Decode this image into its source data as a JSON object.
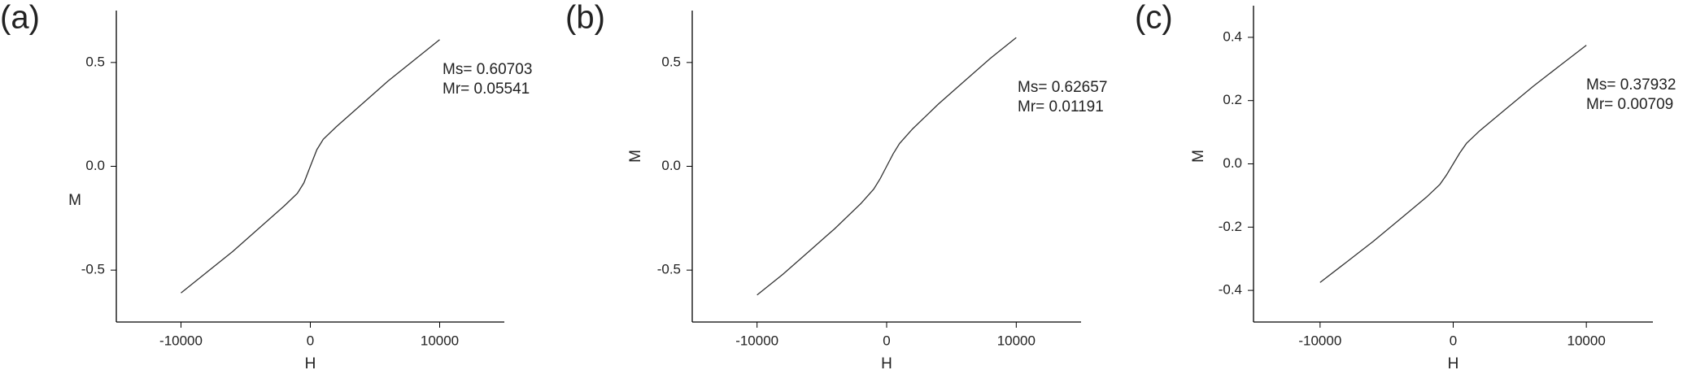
{
  "chart_data": [
    {
      "type": "line",
      "panel_label": "(a)",
      "x_label": "H",
      "y_label": "M",
      "annotations": [
        "Ms= 0.60703",
        "Mr= 0.05541"
      ],
      "xlim": [
        -15000,
        15000
      ],
      "xticks": [
        -10000,
        0,
        10000
      ],
      "ylim": [
        -0.75,
        0.75
      ],
      "yticks": [
        -0.5,
        {
          "value": 0,
          "label": "0.0"
        },
        0.5
      ],
      "x": [
        -10000,
        -8000,
        -6000,
        -4000,
        -2000,
        -1000,
        -500,
        0,
        500,
        1000,
        2000,
        4000,
        6000,
        8000,
        10000
      ],
      "series": [
        {
          "color": "#333333",
          "values": [
            -0.61,
            -0.51,
            -0.41,
            -0.3,
            -0.19,
            -0.13,
            -0.08,
            0.0,
            0.08,
            0.13,
            0.19,
            0.3,
            0.41,
            0.51,
            0.61
          ]
        }
      ]
    },
    {
      "type": "line",
      "panel_label": "(b)",
      "x_label": "H",
      "y_label": "M",
      "annotations": [
        "Ms= 0.62657",
        "Mr= 0.01191"
      ],
      "xlim": [
        -15000,
        15000
      ],
      "xticks": [
        -10000,
        0,
        10000
      ],
      "ylim": [
        -0.75,
        0.75
      ],
      "yticks": [
        -0.5,
        {
          "value": 0,
          "label": "0.0"
        },
        0.5
      ],
      "x": [
        -10000,
        -8000,
        -6000,
        -4000,
        -2000,
        -1000,
        -500,
        0,
        500,
        1000,
        2000,
        4000,
        6000,
        8000,
        10000
      ],
      "series": [
        {
          "color": "#333333",
          "values": [
            -0.62,
            -0.52,
            -0.41,
            -0.3,
            -0.18,
            -0.11,
            -0.06,
            0.0,
            0.06,
            0.11,
            0.18,
            0.3,
            0.41,
            0.52,
            0.62
          ]
        }
      ]
    },
    {
      "type": "line",
      "panel_label": "(c)",
      "x_label": "H",
      "y_label": "M",
      "annotations": [
        "Ms= 0.37932",
        "Mr= 0.00709"
      ],
      "xlim": [
        -15000,
        15000
      ],
      "xticks": [
        -10000,
        0,
        10000
      ],
      "ylim": [
        -0.5,
        0.5
      ],
      "yticks": [
        -0.4,
        -0.2,
        {
          "value": 0,
          "label": "0.0"
        },
        0.2,
        0.4
      ],
      "x": [
        -10000,
        -8000,
        -6000,
        -4000,
        -2000,
        -1000,
        -500,
        0,
        500,
        1000,
        2000,
        4000,
        6000,
        8000,
        10000
      ],
      "series": [
        {
          "color": "#333333",
          "values": [
            -0.375,
            -0.31,
            -0.245,
            -0.175,
            -0.105,
            -0.065,
            -0.035,
            0.0,
            0.035,
            0.065,
            0.105,
            0.175,
            0.245,
            0.31,
            0.375
          ]
        }
      ]
    }
  ]
}
